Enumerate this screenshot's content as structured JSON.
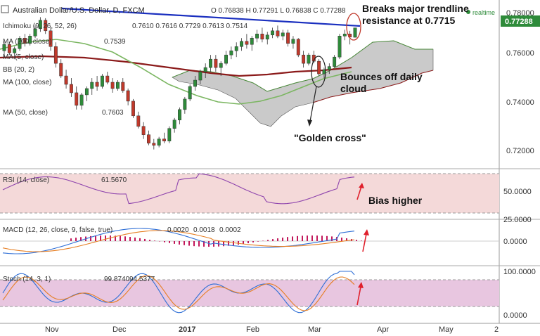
{
  "header": {
    "symbol": "Australian Dollar/U.S. Dollar, D, FXCM",
    "ohlc": "O 0.76838 H 0.77291 L 0.76838 C 0.77288",
    "realtime": "realtime",
    "price_badge": "0.77288"
  },
  "indicators": [
    {
      "label": "Ichimoku (9, 26, 52, 26)",
      "values": "0.7610  0.7616  0.7729  0.7613  0.7514"
    },
    {
      "label": "MA (200, close)",
      "values": "0.7539"
    },
    {
      "label": "MA (5, close)",
      "values": ""
    },
    {
      "label": "BB (20, 2)",
      "values": ""
    },
    {
      "label": "MA (100, close)",
      "values": ""
    },
    {
      "label": "MA (50, close)",
      "values": "0.7603"
    }
  ],
  "annotations": {
    "breaks_1": "Breaks major trendline",
    "breaks_2": "resistance at 0.7715",
    "bounce_1": "Bounces off daily",
    "bounce_2": "cloud",
    "golden": "\"Golden cross\"",
    "bias": "Bias higher"
  },
  "colors": {
    "up": "#2e8b3a",
    "down": "#c0392b",
    "trendline": "#1a2fbf",
    "ma200": "#8b1a1a",
    "ma50": "#7bb661",
    "cloud": "#b8b8b8",
    "rsi": "#8e44ad",
    "macd_line": "#2f6fd6",
    "signal": "#e67e22",
    "stoch_k": "#2f6fd6",
    "stoch_d": "#e67e22",
    "arrow": "#e0202c"
  },
  "chart_data": [
    {
      "type": "candlestick",
      "title": "Australian Dollar/U.S. Dollar, D, FXCM",
      "x_ticks": [
        "Nov",
        "Dec",
        "2017",
        "Feb",
        "Mar",
        "Apr",
        "May",
        "2"
      ],
      "y_ticks": [
        "0.78000",
        "0.76000",
        "0.74000",
        "0.72000"
      ],
      "ylim": [
        0.7065,
        0.7855
      ],
      "candles": [
        [
          0.762,
          0.7665,
          0.759,
          0.765
        ],
        [
          0.765,
          0.766,
          0.76,
          0.761
        ],
        [
          0.761,
          0.764,
          0.758,
          0.763
        ],
        [
          0.763,
          0.769,
          0.762,
          0.768
        ],
        [
          0.768,
          0.77,
          0.764,
          0.7655
        ],
        [
          0.7655,
          0.77,
          0.7645,
          0.769
        ],
        [
          0.769,
          0.774,
          0.768,
          0.7725
        ],
        [
          0.7725,
          0.778,
          0.771,
          0.7765
        ],
        [
          0.7765,
          0.7775,
          0.77,
          0.7715
        ],
        [
          0.7715,
          0.773,
          0.762,
          0.764
        ],
        [
          0.764,
          0.766,
          0.754,
          0.756
        ],
        [
          0.756,
          0.758,
          0.749,
          0.75
        ],
        [
          0.75,
          0.753,
          0.744,
          0.746
        ],
        [
          0.746,
          0.749,
          0.74,
          0.742
        ],
        [
          0.742,
          0.745,
          0.734,
          0.736
        ],
        [
          0.736,
          0.742,
          0.734,
          0.741
        ],
        [
          0.741,
          0.745,
          0.738,
          0.744
        ],
        [
          0.744,
          0.749,
          0.741,
          0.747
        ],
        [
          0.747,
          0.75,
          0.743,
          0.745
        ],
        [
          0.745,
          0.751,
          0.744,
          0.75
        ],
        [
          0.75,
          0.752,
          0.746,
          0.747
        ],
        [
          0.747,
          0.749,
          0.742,
          0.744
        ],
        [
          0.744,
          0.748,
          0.743,
          0.747
        ],
        [
          0.747,
          0.749,
          0.742,
          0.743
        ],
        [
          0.743,
          0.744,
          0.736,
          0.738
        ],
        [
          0.738,
          0.739,
          0.73,
          0.731
        ],
        [
          0.731,
          0.733,
          0.725,
          0.726
        ],
        [
          0.726,
          0.728,
          0.72,
          0.722
        ],
        [
          0.722,
          0.724,
          0.717,
          0.718
        ],
        [
          0.718,
          0.72,
          0.715,
          0.717
        ],
        [
          0.717,
          0.721,
          0.716,
          0.72
        ],
        [
          0.72,
          0.723,
          0.718,
          0.719
        ],
        [
          0.719,
          0.726,
          0.718,
          0.725
        ],
        [
          0.725,
          0.73,
          0.723,
          0.729
        ],
        [
          0.729,
          0.735,
          0.727,
          0.734
        ],
        [
          0.734,
          0.74,
          0.732,
          0.739
        ],
        [
          0.739,
          0.746,
          0.738,
          0.745
        ],
        [
          0.745,
          0.75,
          0.743,
          0.748
        ],
        [
          0.748,
          0.753,
          0.746,
          0.752
        ],
        [
          0.752,
          0.756,
          0.749,
          0.754
        ],
        [
          0.754,
          0.76,
          0.752,
          0.758
        ],
        [
          0.758,
          0.76,
          0.752,
          0.754
        ],
        [
          0.754,
          0.757,
          0.75,
          0.756
        ],
        [
          0.756,
          0.762,
          0.755,
          0.76
        ],
        [
          0.76,
          0.764,
          0.758,
          0.762
        ],
        [
          0.762,
          0.766,
          0.759,
          0.764
        ],
        [
          0.764,
          0.768,
          0.762,
          0.7665
        ],
        [
          0.7665,
          0.77,
          0.763,
          0.765
        ],
        [
          0.765,
          0.769,
          0.762,
          0.768
        ],
        [
          0.768,
          0.772,
          0.766,
          0.77
        ],
        [
          0.77,
          0.773,
          0.766,
          0.7675
        ],
        [
          0.7675,
          0.771,
          0.765,
          0.7695
        ],
        [
          0.7695,
          0.773,
          0.768,
          0.7715
        ],
        [
          0.7715,
          0.774,
          0.768,
          0.769
        ],
        [
          0.769,
          0.772,
          0.767,
          0.7705
        ],
        [
          0.7705,
          0.772,
          0.764,
          0.7655
        ],
        [
          0.7655,
          0.769,
          0.763,
          0.7675
        ],
        [
          0.7675,
          0.768,
          0.759,
          0.76
        ],
        [
          0.76,
          0.762,
          0.754,
          0.756
        ],
        [
          0.756,
          0.761,
          0.755,
          0.76
        ],
        [
          0.76,
          0.762,
          0.756,
          0.757
        ],
        [
          0.757,
          0.758,
          0.75,
          0.751
        ],
        [
          0.751,
          0.754,
          0.749,
          0.753
        ],
        [
          0.753,
          0.756,
          0.751,
          0.7545
        ],
        [
          0.7545,
          0.76,
          0.754,
          0.759
        ],
        [
          0.759,
          0.77,
          0.758,
          0.769
        ],
        [
          0.769,
          0.772,
          0.767,
          0.77
        ],
        [
          0.77,
          0.7715,
          0.765,
          0.7685
        ],
        [
          0.7684,
          0.7729,
          0.7684,
          0.7729
        ]
      ],
      "moving_averages": [
        {
          "name": "MA (200, close)",
          "last": 0.7539
        },
        {
          "name": "MA (50, close)",
          "last": 0.7603
        }
      ],
      "trendline": {
        "from": 0.778,
        "to": 0.7715
      }
    },
    {
      "type": "line",
      "title": "RSI (14, close)",
      "value": 61.567,
      "value_label": "61.5670",
      "y_ticks": [
        "50.0000",
        "25.0000"
      ],
      "ylim": [
        25,
        80
      ]
    },
    {
      "type": "line",
      "title": "MACD (12, 26, close, 9, false, true)",
      "values_label": [
        "0.0020",
        "0.0018",
        "0.0002"
      ],
      "y_ticks": [
        "0.0000"
      ],
      "ylim": [
        -0.0045,
        0.0045
      ]
    },
    {
      "type": "line",
      "title": "Stoch (14, 3, 1)",
      "values_label": [
        "99.8740",
        "94.5377"
      ],
      "y_ticks": [
        "100.0000",
        "0.0000"
      ],
      "ylim": [
        -5,
        105
      ]
    }
  ]
}
